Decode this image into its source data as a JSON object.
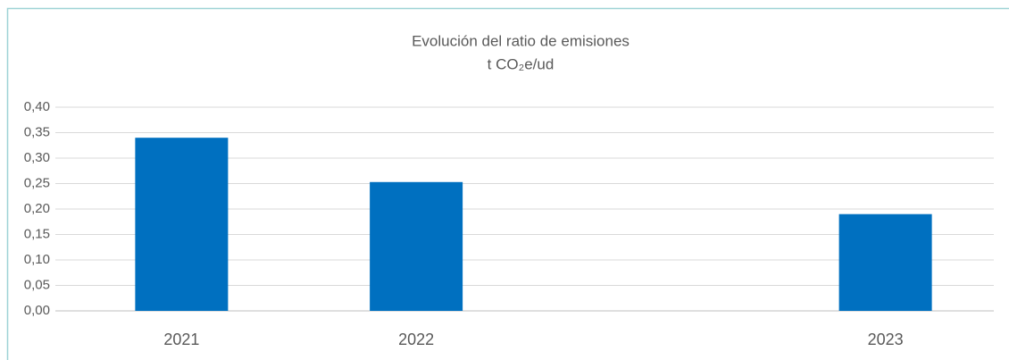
{
  "chart_data": {
    "type": "bar",
    "title": "Evolución del ratio de emisiones",
    "subtitle": "t CO₂e/ud",
    "categories": [
      "2021",
      "2022",
      null,
      "2023"
    ],
    "values": [
      0.34,
      0.253,
      null,
      0.19
    ],
    "color": "#0070c0",
    "ylim": [
      0,
      0.4
    ],
    "yticks": [
      {
        "value": 0,
        "label": "0,00"
      },
      {
        "value": 0.05,
        "label": "0,05"
      },
      {
        "value": 0.1,
        "label": "0,10"
      },
      {
        "value": 0.15,
        "label": "0,15"
      },
      {
        "value": 0.2,
        "label": "0,20"
      },
      {
        "value": 0.25,
        "label": "0,25"
      },
      {
        "value": 0.3,
        "label": "0,30"
      },
      {
        "value": 0.35,
        "label": "0,35"
      },
      {
        "value": 0.4,
        "label": "0,40"
      }
    ],
    "grid": true
  }
}
